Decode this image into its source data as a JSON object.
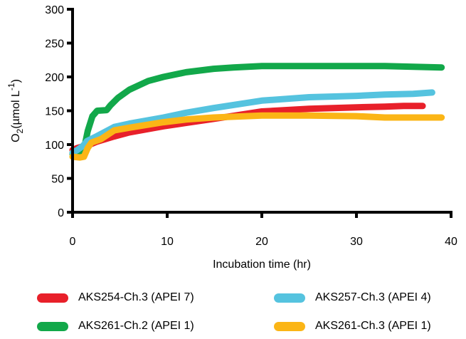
{
  "chart_data": {
    "type": "line",
    "title": "",
    "xlabel": "Incubation time (hr)",
    "ylabel": {
      "main": "O",
      "subscript": "2",
      "unit_pre": "(µmol L",
      "unit_sup": "-1",
      "unit_post": ")"
    },
    "xlim": [
      0,
      40
    ],
    "ylim": [
      0,
      300
    ],
    "xticks": [
      0,
      10,
      20,
      30,
      40
    ],
    "yticks": [
      0,
      50,
      100,
      150,
      200,
      250,
      300
    ],
    "grid": false,
    "legend_position": "bottom",
    "series": [
      {
        "name": "AKS254-Ch.3 (APEI 7)",
        "color": "#e8202a",
        "x": [
          0,
          0.5,
          1.0,
          1.5,
          2.5,
          4.4,
          6,
          9.6,
          12,
          14.9,
          20,
          25,
          30,
          33,
          35,
          37
        ],
        "y": [
          92,
          95,
          97,
          98,
          104,
          112,
          118,
          127,
          132,
          138,
          149,
          153,
          155,
          156,
          157,
          157
        ]
      },
      {
        "name": "AKS261-Ch.2 (APEI 1)",
        "color": "#12a84a",
        "x": [
          0,
          1.1,
          1.6,
          2.1,
          2.6,
          3.6,
          4.0,
          4.8,
          6,
          8,
          9.6,
          12,
          14.9,
          17,
          20,
          25,
          30,
          33,
          36,
          39
        ],
        "y": [
          86,
          86,
          120,
          142,
          150,
          151,
          158,
          169,
          181,
          194,
          200,
          207,
          212,
          214,
          216,
          216,
          216,
          216,
          215,
          214
        ]
      },
      {
        "name": "AKS257-Ch.3 (APEI 4)",
        "color": "#55c3df",
        "x": [
          0,
          0.5,
          1.1,
          1.5,
          2.5,
          4.4,
          6,
          9.6,
          12,
          14.9,
          20,
          25,
          30,
          33,
          36,
          38
        ],
        "y": [
          88,
          92,
          98,
          105,
          112,
          126,
          131,
          140,
          147,
          154,
          165,
          170,
          172,
          174,
          175,
          177
        ]
      },
      {
        "name": "AKS261-Ch.3 (APEI 1)",
        "color": "#fbb516",
        "x": [
          0,
          0.8,
          1.2,
          1.6,
          2.0,
          3.0,
          4.4,
          6,
          9.6,
          12,
          14.9,
          20,
          25,
          30,
          33,
          36,
          39
        ],
        "y": [
          82,
          81,
          82,
          95,
          103,
          108,
          121,
          125,
          133,
          137,
          140,
          143,
          143,
          142,
          140,
          140,
          140
        ]
      }
    ]
  }
}
